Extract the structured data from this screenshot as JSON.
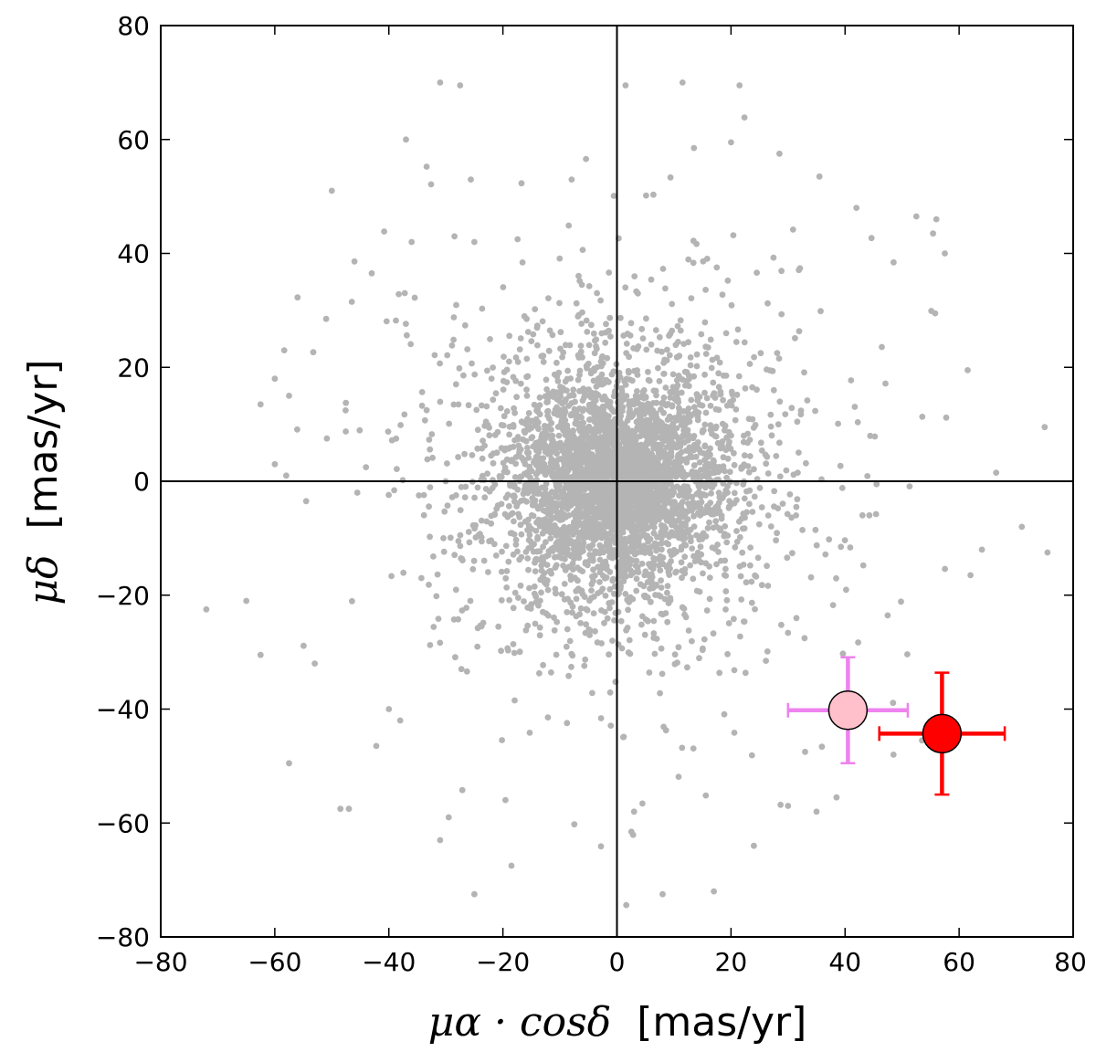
{
  "chart_data": {
    "type": "scatter",
    "title": "",
    "xlabel": {
      "math": "μα · cosδ",
      "unit": "[mas/yr]"
    },
    "ylabel": {
      "math": "μδ",
      "unit": "[mas/yr]"
    },
    "xlim": [
      -80,
      80
    ],
    "ylim": [
      -80,
      80
    ],
    "xticks": [
      -80,
      -60,
      -40,
      -20,
      0,
      20,
      40,
      60,
      80
    ],
    "yticks": [
      -80,
      -60,
      -40,
      -20,
      0,
      20,
      40,
      60,
      80
    ],
    "xtick_labels": [
      "−80",
      "−60",
      "−40",
      "−20",
      "0",
      "20",
      "40",
      "60",
      "80"
    ],
    "ytick_labels": [
      "−80",
      "−60",
      "−40",
      "−20",
      "0",
      "20",
      "40",
      "60",
      "80"
    ],
    "grid": false,
    "zero_lines": {
      "x": 0,
      "y": 0
    },
    "background_stars": {
      "name": "field stars",
      "color": "#b4b4b4",
      "count_approx": 4000,
      "distribution": "roughly Gaussian around (0, 0), dense core within ~15 mas/yr",
      "sample_outliers": [
        {
          "x": -72,
          "y": -22.5
        },
        {
          "x": -65,
          "y": -21
        },
        {
          "x": -62.5,
          "y": 13.5
        },
        {
          "x": -60,
          "y": 18
        },
        {
          "x": -57.5,
          "y": 15
        },
        {
          "x": -57.5,
          "y": -49.5
        },
        {
          "x": -50,
          "y": 51
        },
        {
          "x": -48.5,
          "y": -57.5
        },
        {
          "x": -47,
          "y": -57.5
        },
        {
          "x": -37,
          "y": 60
        },
        {
          "x": -31,
          "y": 70
        },
        {
          "x": -27.5,
          "y": 69.5
        },
        {
          "x": -25,
          "y": -72.5
        },
        {
          "x": 1.5,
          "y": 69.5
        },
        {
          "x": 11.5,
          "y": 70
        },
        {
          "x": 21.5,
          "y": 69.5
        },
        {
          "x": 8,
          "y": -72.5
        },
        {
          "x": 17,
          "y": -72
        },
        {
          "x": 75,
          "y": 9.5
        },
        {
          "x": 75.5,
          "y": -12.5
        },
        {
          "x": 71,
          "y": -8
        },
        {
          "x": 66.5,
          "y": 1.5
        },
        {
          "x": 64,
          "y": -12
        },
        {
          "x": 62,
          "y": -16.5
        },
        {
          "x": 61.5,
          "y": 19.5
        },
        {
          "x": 57.5,
          "y": 40
        },
        {
          "x": 52.5,
          "y": 46.5
        },
        {
          "x": 56,
          "y": 46
        },
        {
          "x": 42,
          "y": 48
        },
        {
          "x": 35.5,
          "y": 53.5
        },
        {
          "x": 28.5,
          "y": 57.5
        },
        {
          "x": 20,
          "y": 59.5
        },
        {
          "x": 13.5,
          "y": 58.5
        },
        {
          "x": -40,
          "y": -40
        },
        {
          "x": -38,
          "y": -42
        },
        {
          "x": -31,
          "y": -63
        },
        {
          "x": -29.5,
          "y": -59
        },
        {
          "x": -18.5,
          "y": -67.5
        },
        {
          "x": 3,
          "y": -58
        },
        {
          "x": 24,
          "y": -64
        },
        {
          "x": 30,
          "y": -57
        },
        {
          "x": 35,
          "y": -58
        },
        {
          "x": 38.5,
          "y": -55.5
        },
        {
          "x": 33,
          "y": -47.5
        },
        {
          "x": 48.5,
          "y": -48
        },
        {
          "x": 53.5,
          "y": -45.5
        },
        {
          "x": -53,
          "y": -32
        },
        {
          "x": -62.5,
          "y": -30.5
        },
        {
          "x": -51,
          "y": 28.5
        },
        {
          "x": -46.5,
          "y": 31.5
        },
        {
          "x": -43,
          "y": 36.5
        },
        {
          "x": -36,
          "y": 42
        },
        {
          "x": -28.5,
          "y": 43
        },
        {
          "x": -25,
          "y": 42
        },
        {
          "x": -58,
          "y": 1
        },
        {
          "x": -60,
          "y": 3
        },
        {
          "x": -54.5,
          "y": -3.5
        }
      ]
    },
    "series": [
      {
        "name": "pink object",
        "x": 40.5,
        "y": -40.2,
        "x_err": 10.5,
        "y_err": 9.3,
        "marker_color": "#ffc0cb",
        "errorbar_color": "#ee82ee",
        "edge_color": "#000000"
      },
      {
        "name": "red object",
        "x": 57,
        "y": -44.3,
        "x_err": 11,
        "y_err": 10.7,
        "marker_color": "#ff0000",
        "errorbar_color": "#ff0000",
        "edge_color": "#000000"
      }
    ]
  }
}
